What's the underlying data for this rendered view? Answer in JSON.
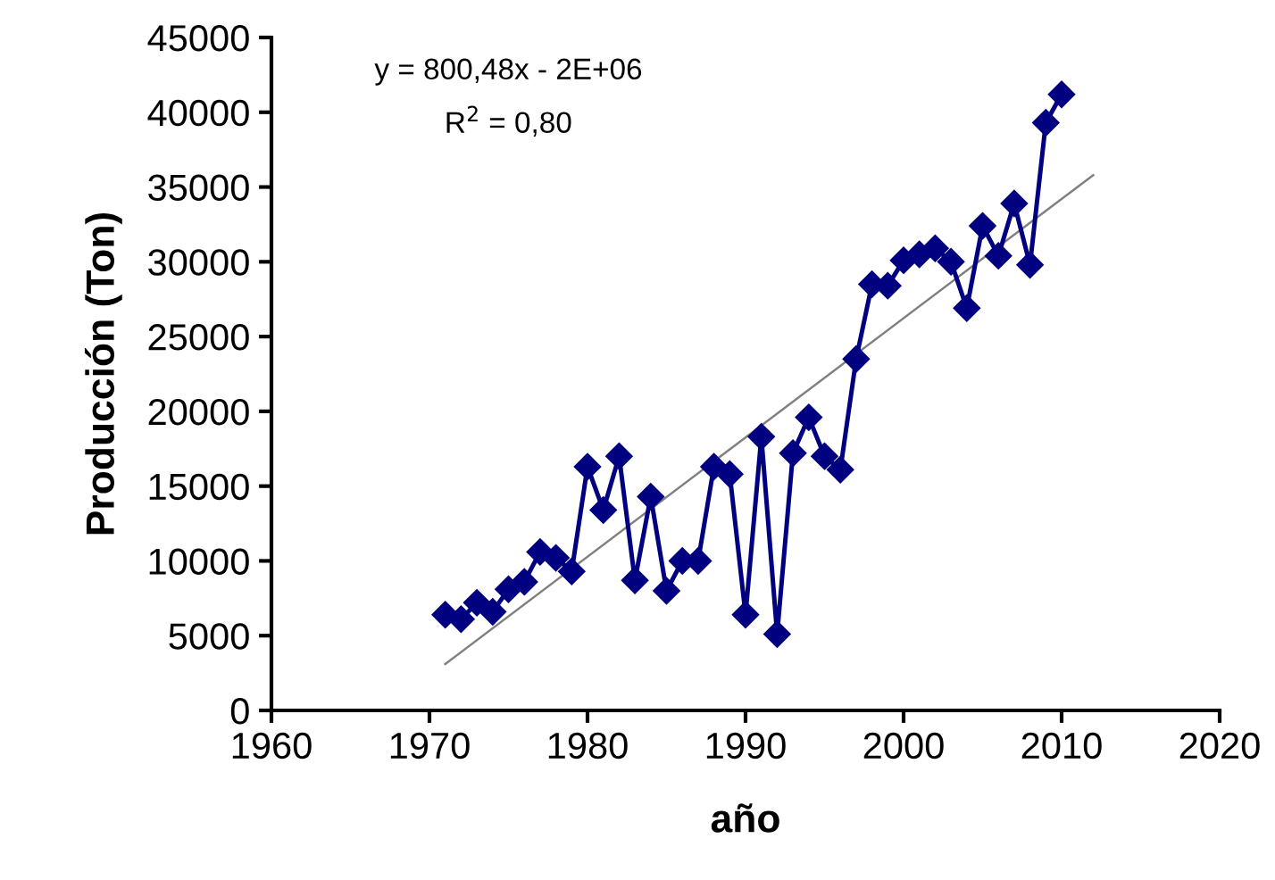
{
  "chart_data": {
    "type": "line",
    "xlabel": "año",
    "ylabel": "Producción (Ton)",
    "annotations": [
      "y = 800,48x - 2E+06",
      "R$^{2}$ = 0,80"
    ],
    "series": [
      {
        "color": "#000080",
        "marker": "diamond",
        "x": [
          1971,
          1972,
          1973,
          1974,
          1975,
          1976,
          1977,
          1978,
          1979,
          1980,
          1981,
          1982,
          1983,
          1984,
          1985,
          1986,
          1987,
          1988,
          1989,
          1990,
          1991,
          1992,
          1993,
          1994,
          1995,
          1996,
          1997,
          1998,
          1999,
          2000,
          2001,
          2002,
          2003,
          2004,
          2005,
          2006,
          2007,
          2008,
          2009,
          2010
        ],
        "values": [
          6400,
          6100,
          7200,
          6600,
          8100,
          8600,
          10600,
          10200,
          9300,
          16300,
          13400,
          17000,
          8700,
          14300,
          8000,
          10000,
          10000,
          16300,
          15800,
          6400,
          18300,
          5100,
          17200,
          19600,
          17000,
          16100,
          23500,
          28500,
          28400,
          30100,
          30500,
          30900,
          30000,
          26900,
          32400,
          30400,
          33900,
          29800,
          39300,
          41200
        ]
      },
      {
        "type": "line",
        "color": "#808080",
        "marker": "none",
        "x": [
          1971,
          2012
        ],
        "values": [
          3100,
          35800
        ]
      }
    ],
    "xlim": [
      1960,
      2020
    ],
    "xticks": [
      1960,
      1970,
      1980,
      1990,
      2000,
      2010,
      2020
    ],
    "ylim": [
      0,
      45000
    ],
    "yticks": [
      0,
      5000,
      10000,
      15000,
      20000,
      25000,
      30000,
      35000,
      40000,
      45000
    ],
    "grid": false,
    "legend": false
  }
}
